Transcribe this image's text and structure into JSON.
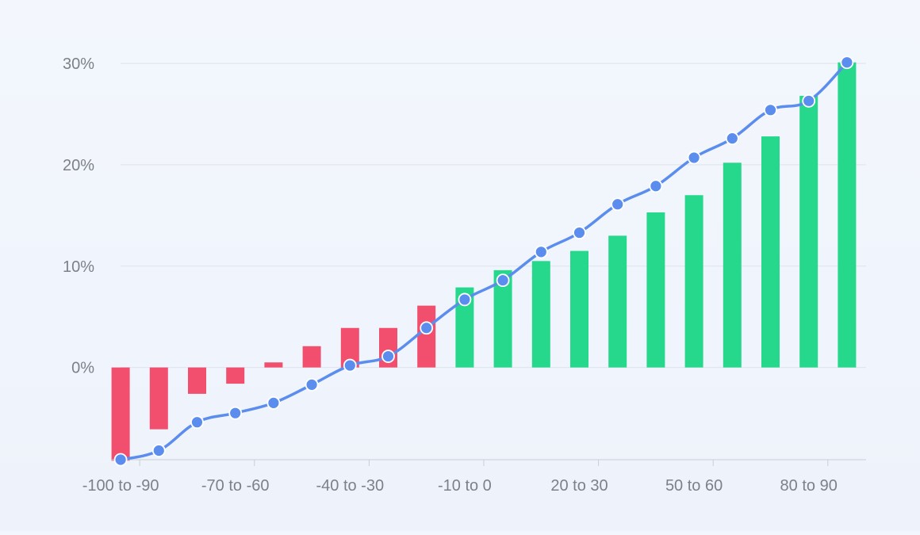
{
  "chart_data": {
    "type": "bar",
    "categories": [
      "-100 to -90",
      "-90 to -80",
      "-80 to -70",
      "-70 to -60",
      "-60 to -50",
      "-50 to -40",
      "-40 to -30",
      "-30 to -20",
      "-20 to -10",
      "-10 to 0",
      "0 to 10",
      "10 to 20",
      "20 to 30",
      "30 to 40",
      "40 to 50",
      "50 to 60",
      "60 to 70",
      "70 to 80",
      "80 to 90",
      "90 to 100"
    ],
    "visible_category_labels": [
      "-100 to -90",
      "-70 to -60",
      "-40 to -30",
      "-10 to 0",
      "20 to 30",
      "50 to 60",
      "80 to 90"
    ],
    "series": [
      {
        "type": "bar",
        "values": [
          -9.2,
          -6.1,
          -2.6,
          -1.6,
          0.5,
          2.1,
          3.9,
          3.9,
          6.1,
          7.9,
          9.6,
          10.5,
          11.5,
          13.0,
          15.3,
          17.0,
          20.2,
          22.8,
          26.8,
          30.1
        ]
      },
      {
        "type": "line",
        "values": [
          -9.1,
          -8.2,
          -5.4,
          -4.5,
          -3.5,
          -1.7,
          0.2,
          1.1,
          3.9,
          6.7,
          8.6,
          11.4,
          13.3,
          16.1,
          17.9,
          20.7,
          22.6,
          25.4,
          26.3,
          30.1
        ]
      }
    ],
    "ylim": [
      -9.1,
      30
    ],
    "yticks": [
      0,
      10,
      20,
      30
    ],
    "ytick_labels": [
      "0%",
      "10%",
      "20%",
      "30%"
    ],
    "xlabel": "",
    "ylabel": "",
    "title": "",
    "grid": true,
    "legend": "none",
    "colors": {
      "negative_bar": "#f24e6e",
      "positive_bar": "#26d88c",
      "line": "#5b8def",
      "marker_fill": "#5b8def",
      "marker_stroke": "#ffffff",
      "grid": "#dfe3ea",
      "axis": "#c9ced6",
      "label": "#7d8088"
    }
  }
}
